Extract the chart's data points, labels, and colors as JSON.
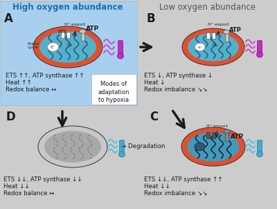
{
  "bg_main": "#cccccc",
  "bg_A": "#a8d0ee",
  "title_A": "High oxygen abundance",
  "title_B": "Low oxygen abundance",
  "label_A": "A",
  "label_B": "B",
  "label_C": "C",
  "label_D": "D",
  "text_A1": "ETS ↑↑, ATP synthase ↑↑",
  "text_A2": "Heat ↑↑",
  "text_A3": "Redox balance ↔",
  "text_B1": "ETS ↓, ATP synthase ↓",
  "text_B2": "Heat ↓",
  "text_B3": "Redox imbalance ↘↘",
  "text_C1": "ETS ↓↓, ATP synthase ↑↑",
  "text_C2": "Heat ↓↓",
  "text_C3": "Redox imbalance ↘↘",
  "text_D1": "ETS ↓↓, ATP synthase ↓↓",
  "text_D2": "Heat ↓↓",
  "text_D3": "Redox balance ↔",
  "modes_text": "Modes of\nadaptation\nto hypoxia",
  "degradation_text": "→ Degradation",
  "color_title_A": "#1a6faf",
  "color_title_B": "#555555",
  "mito_outer": "#e05030",
  "mito_inner": "#55b0cc",
  "arrow_color": "#1a1a1a",
  "heat_hot": "#cc44cc",
  "heat_cold": "#55bbdd",
  "therm_hot": "#bb33bb",
  "therm_cold": "#44aacc",
  "font_title": 8.5,
  "font_label": 11,
  "font_text": 6.2,
  "font_modes": 6.0
}
